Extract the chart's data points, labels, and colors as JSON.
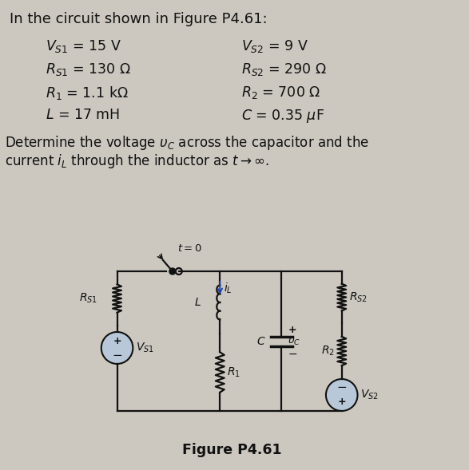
{
  "title_line1": "In the circuit shown in Figure P4.61:",
  "params_col1": [
    "$V_{S1}$ = 15 V",
    "$R_{S1}$ = 130 $\\Omega$",
    "$R_1$ = 1.1 k$\\Omega$",
    "$L$ = 17 mH"
  ],
  "params_col2": [
    "$V_{S2}$ = 9 V",
    "$R_{S2}$ = 290 $\\Omega$",
    "$R_2$ = 700 $\\Omega$",
    "$C$ = 0.35 $\\mu$F"
  ],
  "figure_label": "Figure P4.61",
  "bg_color": "#ccc8c0",
  "text_color": "#111111",
  "circuit_color": "#111111"
}
